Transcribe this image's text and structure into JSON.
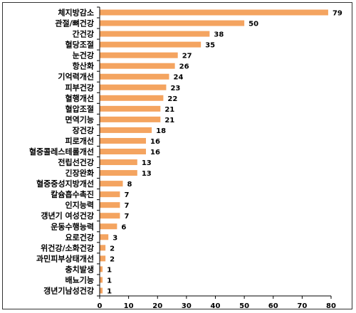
{
  "chart_data": {
    "type": "bar",
    "orientation": "horizontal",
    "title": "",
    "xlabel": "",
    "ylabel": "",
    "categories": [
      "체지방감소",
      "관절/뼈건강",
      "간건강",
      "혈당조절",
      "눈건강",
      "항산화",
      "기억력개선",
      "피부건강",
      "혈행개선",
      "혈압조절",
      "면역기능",
      "장건강",
      "피로개선",
      "혈중콜레스테롤개선",
      "전립선건강",
      "긴장완화",
      "혈중중성지방개선",
      "칼슘흡수촉진",
      "인지능력",
      "갱년기 여성건강",
      "운동수행능력",
      "요로건강",
      "위건강/소화건강",
      "과민피부상태개선",
      "충치발생",
      "배뇨기능",
      "갱년기남성건강"
    ],
    "values": [
      79,
      50,
      38,
      35,
      27,
      26,
      24,
      23,
      22,
      21,
      21,
      18,
      16,
      16,
      13,
      13,
      8,
      7,
      7,
      7,
      6,
      3,
      2,
      2,
      1,
      1,
      1
    ],
    "xlim": [
      0,
      80
    ],
    "xticks": [
      0,
      10,
      20,
      30,
      40,
      50,
      60,
      70,
      80
    ],
    "bar_color": "#F4A460",
    "grid": false,
    "legend": "none"
  }
}
